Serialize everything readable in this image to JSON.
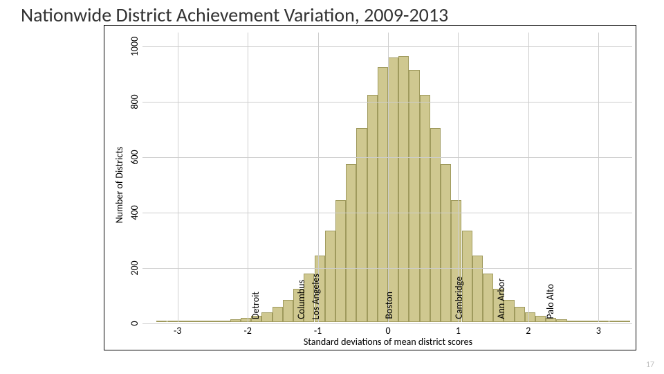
{
  "title": "Nationwide District Achievement Variation, 2009-2013",
  "slide_number": "17",
  "chart": {
    "type": "histogram",
    "background_color": "#ffffff",
    "border_color": "#000000",
    "grid_color": "#cdcdcd",
    "bar_fill": "#cfc890",
    "bar_border": "#9f9a5d",
    "x_axis": {
      "title": "Standard deviations of mean district scores",
      "min": -3.5,
      "max": 3.5,
      "ticks": [
        -3,
        -2,
        -1,
        0,
        1,
        2,
        3
      ]
    },
    "y_axis": {
      "title": "Number of Districts",
      "min": 0,
      "max": 1050,
      "ticks": [
        0,
        200,
        400,
        600,
        800,
        1000
      ]
    },
    "bins": {
      "start": -3.3,
      "width": 0.15,
      "values": [
        1,
        1,
        2,
        2,
        3,
        4,
        6,
        10,
        15,
        22,
        35,
        55,
        80,
        120,
        175,
        240,
        330,
        440,
        570,
        700,
        820,
        920,
        955,
        960,
        910,
        820,
        700,
        570,
        440,
        330,
        240,
        175,
        120,
        80,
        55,
        35,
        22,
        15,
        10,
        6,
        4,
        3,
        2,
        2,
        1
      ]
    },
    "cities": [
      {
        "name": "Detroit",
        "x": -1.9
      },
      {
        "name": "Columbus",
        "x": -1.25
      },
      {
        "name": "Los Angeles",
        "x": -1.05
      },
      {
        "name": "Boston",
        "x": 0.0
      },
      {
        "name": "Cambridge",
        "x": 1.0
      },
      {
        "name": "Ann Arbor",
        "x": 1.6
      },
      {
        "name": "Palo Alto",
        "x": 2.3
      }
    ],
    "title_fontsize": 28,
    "tick_fontsize": 14,
    "axis_title_fontsize": 14,
    "city_fontsize": 14
  }
}
